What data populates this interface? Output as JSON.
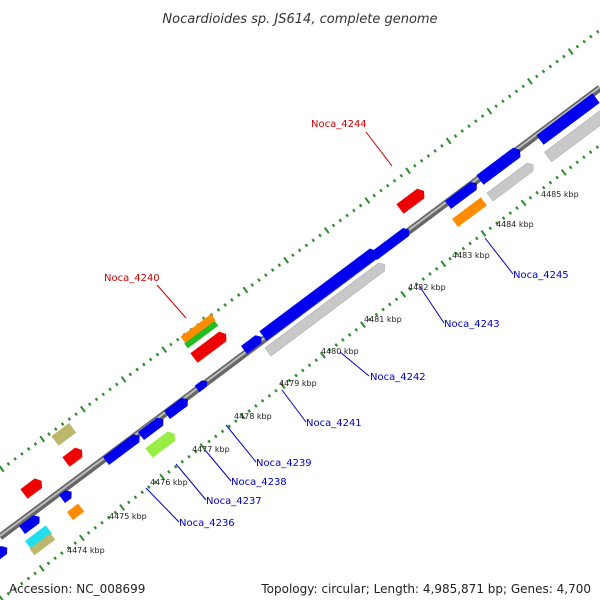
{
  "title": "Nocardioides sp. JS614, complete genome",
  "footer": {
    "accession": "Accession: NC_008699",
    "summary": "Topology: circular; Length: 4,985,871 bp; Genes: 4,700"
  },
  "colors": {
    "backbone": "#888888",
    "ruler_dots": "#2e8b2e",
    "label_highlight": "#d00000",
    "label_normal": "#0000c8",
    "cds_blue": "#0000ee",
    "cds_grey": "#c8c8c8",
    "cds_red": "#ee0000",
    "cds_orange": "#ff8c00",
    "cds_green": "#22bb22",
    "cds_lime": "#99ee44",
    "cds_khaki": "#bdb76b",
    "cds_cyan": "#22ddee"
  },
  "scale_ticks": [
    "4474 kbp",
    "4475 kbp",
    "4476 kbp",
    "4477 kbp",
    "4478 kbp",
    "4479 kbp",
    "4480 kbp",
    "4481 kbp",
    "4482 kbp",
    "4483 kbp",
    "4484 kbp",
    "4485 kbp"
  ],
  "gene_labels": [
    {
      "text": "Noca_4244",
      "highlight": true
    },
    {
      "text": "Noca_4240",
      "highlight": true
    },
    {
      "text": "Noca_4245",
      "highlight": false
    },
    {
      "text": "Noca_4243",
      "highlight": false
    },
    {
      "text": "Noca_4242",
      "highlight": false
    },
    {
      "text": "Noca_4241",
      "highlight": false
    },
    {
      "text": "Noca_4239",
      "highlight": false
    },
    {
      "text": "Noca_4238",
      "highlight": false
    },
    {
      "text": "Noca_4237",
      "highlight": false
    },
    {
      "text": "Noca_4236",
      "highlight": false
    }
  ]
}
